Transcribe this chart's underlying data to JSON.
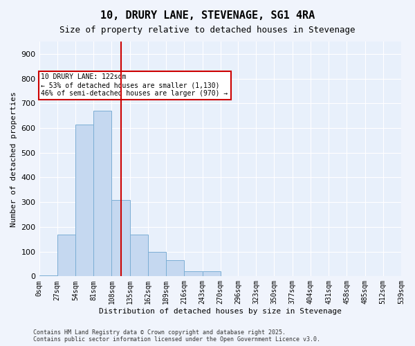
{
  "title": "10, DRURY LANE, STEVENAGE, SG1 4RA",
  "subtitle": "Size of property relative to detached houses in Stevenage",
  "xlabel": "Distribution of detached houses by size in Stevenage",
  "ylabel": "Number of detached properties",
  "bar_color": "#c5d8f0",
  "bar_edge_color": "#7baed4",
  "background_color": "#e8f0fb",
  "grid_color": "#ffffff",
  "vline_x": 122,
  "vline_color": "#cc0000",
  "annotation_text": "10 DRURY LANE: 122sqm\n← 53% of detached houses are smaller (1,130)\n46% of semi-detached houses are larger (970) →",
  "annotation_box_color": "#cc0000",
  "footnote": "Contains HM Land Registry data © Crown copyright and database right 2025.\nContains public sector information licensed under the Open Government Licence v3.0.",
  "bin_edges": [
    0,
    27,
    54,
    81,
    108,
    135,
    162,
    189,
    216,
    243,
    270,
    296,
    323,
    350,
    377,
    404,
    431,
    458,
    485,
    512,
    539
  ],
  "bin_labels": [
    "0sqm",
    "27sqm",
    "54sqm",
    "81sqm",
    "108sqm",
    "135sqm",
    "162sqm",
    "189sqm",
    "216sqm",
    "243sqm",
    "270sqm",
    "296sqm",
    "323sqm",
    "350sqm",
    "377sqm",
    "404sqm",
    "431sqm",
    "458sqm",
    "485sqm",
    "512sqm",
    "539sqm"
  ],
  "bar_heights": [
    5,
    170,
    615,
    670,
    310,
    170,
    100,
    65,
    20,
    20,
    0,
    0,
    0,
    0,
    0,
    0,
    0,
    0,
    0,
    0
  ],
  "ylim": [
    0,
    950
  ],
  "yticks": [
    0,
    100,
    200,
    300,
    400,
    500,
    600,
    700,
    800,
    900
  ]
}
